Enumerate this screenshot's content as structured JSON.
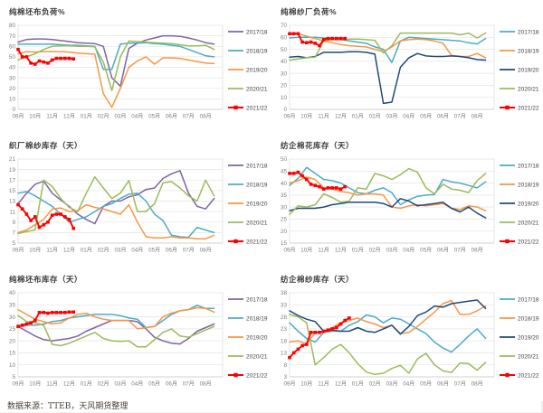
{
  "footer": {
    "source_note": "数据来源：TTEB，天风期货整理"
  },
  "colors": {
    "purple": "#8064A2",
    "cyan": "#4BACC6",
    "orange": "#F79646",
    "green": "#9BBB59",
    "dark_blue": "#1F497D",
    "red": "#FF0000",
    "grid": "#E4E4E4",
    "axis_text": "#7F7F7F",
    "title_text": "#3B3B3B"
  },
  "x_labels": [
    "09月",
    "10月",
    "11月",
    "12月",
    "01月",
    "02月",
    "03月",
    "04月",
    "05月",
    "06月",
    "07月",
    "08月"
  ],
  "chart_data": [
    {
      "type": "line",
      "title": "纯棉坯布负荷%",
      "ylim": [
        0,
        80
      ],
      "yticks": [
        0,
        10,
        20,
        30,
        40,
        50,
        60,
        70,
        80
      ],
      "grid": true,
      "legend_position": "right",
      "series": [
        {
          "name": "2017/18",
          "color": "#8064A2",
          "months_per_point": 0.5,
          "values": [
            64,
            66.5,
            67,
            67,
            66.5,
            65.5,
            64.5,
            63.5,
            63,
            62.5,
            60,
            30,
            22,
            58,
            63,
            66,
            68,
            70,
            70,
            69.5,
            68,
            66,
            63.5,
            62
          ]
        },
        {
          "name": "2018/19",
          "color": "#4BACC6",
          "months_per_point": 0.5,
          "values": [
            62,
            62,
            62,
            62,
            62,
            61.5,
            61,
            61,
            60.5,
            60,
            38,
            38,
            62,
            63,
            63,
            63.5,
            62.5,
            62,
            61,
            60,
            57,
            54,
            51,
            50
          ]
        },
        {
          "name": "2019/20",
          "color": "#F79646",
          "months_per_point": 0.5,
          "values": [
            53,
            55,
            54.5,
            55,
            55,
            55,
            54.5,
            53.5,
            53,
            52.5,
            15,
            2,
            20,
            40,
            46,
            50,
            43,
            49,
            49,
            48.5,
            47,
            45.5,
            44,
            43.5
          ]
        },
        {
          "name": "2020/21",
          "color": "#9BBB59",
          "months_per_point": 0.5,
          "values": [
            47,
            50,
            53,
            57,
            60,
            60.5,
            60.5,
            60,
            60,
            59.5,
            45,
            18,
            50,
            65,
            64.5,
            64,
            63.5,
            63,
            62.5,
            61.5,
            60.5,
            60.5,
            61,
            57
          ]
        },
        {
          "name": "2021/22",
          "color": "#FF0000",
          "marker": "square",
          "months_per_point": 0.25,
          "values": [
            57,
            50,
            50,
            44,
            43,
            46,
            45,
            44,
            47,
            48.5,
            48.5,
            48.5,
            48.5,
            48
          ]
        }
      ]
    },
    {
      "type": "line",
      "title": "纯棉纱厂负荷%",
      "ylim": [
        0,
        70
      ],
      "yticks": [
        0,
        10,
        20,
        30,
        40,
        50,
        60,
        70
      ],
      "grid": true,
      "legend_position": "right",
      "series": [
        {
          "name": "2017/18",
          "color": "#4BACC6",
          "months_per_point": 0.5,
          "values": [
            59.5,
            60,
            60,
            60,
            59.5,
            59,
            58,
            57,
            56,
            55,
            52,
            50,
            39,
            57,
            60,
            59.5,
            59,
            58.5,
            58,
            57.5,
            57,
            55.5,
            54.5,
            59
          ]
        },
        {
          "name": "2018/19",
          "color": "#F79646",
          "months_per_point": 0.5,
          "values": [
            62.5,
            63,
            61,
            59,
            57,
            55.5,
            54,
            53,
            52.5,
            52,
            50,
            48,
            52,
            57,
            58,
            58.5,
            58,
            57,
            55,
            45,
            44,
            44,
            46.5,
            43
          ]
        },
        {
          "name": "2019/20",
          "color": "#1F497D",
          "months_per_point": 0.5,
          "values": [
            43.5,
            44,
            43,
            44,
            47.5,
            47.5,
            47.5,
            48,
            48,
            47.5,
            46,
            5,
            6,
            35,
            43,
            46.5,
            44.5,
            44,
            44,
            44.5,
            44,
            43,
            41.5,
            41
          ]
        },
        {
          "name": "2020/21",
          "color": "#9BBB59",
          "months_per_point": 0.5,
          "values": [
            41,
            42,
            43,
            43.5,
            57,
            58,
            58,
            58.5,
            58.5,
            58,
            57.5,
            47,
            53,
            63.5,
            63.5,
            63.5,
            63.5,
            63.5,
            63.5,
            63.5,
            62,
            63.5,
            59.5,
            63.5
          ]
        },
        {
          "name": "2021/22",
          "color": "#FF0000",
          "marker": "square",
          "months_per_point": 0.25,
          "values": [
            63,
            63,
            63,
            56,
            55.5,
            56,
            55,
            53,
            58,
            59,
            59,
            59,
            59,
            59
          ]
        }
      ]
    },
    {
      "type": "line",
      "title": "织厂棉纱库存（天）",
      "ylim": [
        5,
        21
      ],
      "yticks": [
        5,
        7,
        9,
        11,
        13,
        15,
        17,
        19,
        21
      ],
      "grid": true,
      "legend_position": "right",
      "series": [
        {
          "name": "2017/18",
          "color": "#8064A2",
          "months_per_point": 0.5,
          "values": [
            12.5,
            14.5,
            16.2,
            16.8,
            14.5,
            13.2,
            12,
            10.5,
            9.5,
            8.7,
            12,
            13,
            13,
            13.8,
            14.2,
            15.2,
            15.5,
            17.3,
            18.2,
            18.8,
            14.5,
            12,
            11.5,
            13.5
          ]
        },
        {
          "name": "2018/19",
          "color": "#4BACC6",
          "months_per_point": 0.5,
          "values": [
            14.5,
            14.8,
            14,
            13,
            12,
            10.5,
            9,
            9.5,
            10,
            11,
            12,
            12.5,
            13.5,
            14.3,
            14.5,
            13,
            10.5,
            9.3,
            6.5,
            6.2,
            6.1,
            8,
            7.5,
            7
          ]
        },
        {
          "name": "2019/20",
          "color": "#F79646",
          "months_per_point": 0.5,
          "values": [
            7,
            7.5,
            8.5,
            9.5,
            11.5,
            11.7,
            11,
            11.2,
            12.3,
            11.8,
            11.5,
            11,
            10.5,
            12.3,
            9,
            6.2,
            6,
            6,
            6.2,
            6,
            6,
            5.8,
            5.8,
            6.5
          ]
        },
        {
          "name": "2020/21",
          "color": "#9BBB59",
          "months_per_point": 0.5,
          "values": [
            6.8,
            7.2,
            7.5,
            17,
            15.8,
            13.5,
            11.8,
            11,
            14.5,
            17.6,
            15.5,
            13.5,
            14.5,
            16.9,
            11,
            11,
            12.5,
            16.5,
            16.7,
            15.5,
            14,
            13,
            17,
            14
          ]
        },
        {
          "name": "2021/22",
          "color": "#FF0000",
          "marker": "square",
          "months_per_point": 0.25,
          "values": [
            12.3,
            11.5,
            10.5,
            9.3,
            10,
            8,
            8.5,
            9,
            10.3,
            10.5,
            10.5,
            10,
            9.5,
            7.8
          ]
        }
      ]
    },
    {
      "type": "line",
      "title": "纺企棉花库存（天）",
      "ylim": [
        15,
        50
      ],
      "yticks": [
        15,
        20,
        25,
        30,
        35,
        40,
        45,
        50
      ],
      "grid": true,
      "legend_position": "right",
      "series": [
        {
          "name": "2017/18",
          "color": "#4BACC6",
          "months_per_point": 0.5,
          "values": [
            39,
            42,
            46.5,
            44,
            41.5,
            41,
            40,
            38,
            36,
            35.5,
            37,
            38,
            36,
            31,
            33,
            34.5,
            35,
            35.2,
            41.5,
            40.5,
            40,
            39,
            38,
            40.5
          ]
        },
        {
          "name": "2018/19",
          "color": "#F79646",
          "months_per_point": 0.5,
          "values": [
            40,
            41,
            42.5,
            41.5,
            38,
            37.5,
            36.5,
            36,
            35,
            35.5,
            35.5,
            35,
            30,
            29.5,
            30.5,
            31,
            30.5,
            31,
            31.5,
            29.5,
            29,
            30.5,
            30,
            28.5
          ]
        },
        {
          "name": "2019/20",
          "color": "#1F497D",
          "months_per_point": 0.5,
          "values": [
            28.5,
            29.5,
            29.5,
            29.5,
            30,
            31,
            31.5,
            32,
            32,
            32,
            32,
            31.5,
            30,
            33.5,
            32.5,
            30.5,
            31,
            31.5,
            32,
            29.5,
            28,
            30,
            27.5,
            25.5
          ]
        },
        {
          "name": "2020/21",
          "color": "#9BBB59",
          "months_per_point": 0.5,
          "values": [
            27,
            30.5,
            30,
            31,
            35.5,
            34,
            32,
            32.5,
            38,
            37.5,
            44,
            43,
            41.5,
            43.5,
            46,
            44.5,
            38,
            35.5,
            39.5,
            37.5,
            37,
            36,
            41,
            44
          ]
        },
        {
          "name": "2021/22",
          "color": "#FF0000",
          "marker": "square",
          "months_per_point": 0.25,
          "values": [
            44,
            44,
            44.5,
            43,
            41.5,
            39.5,
            39,
            38.5,
            37.5,
            38,
            38,
            38,
            37.5,
            38.5
          ]
        }
      ]
    },
    {
      "type": "line",
      "title": "纯棉坯布库存（天）",
      "ylim": [
        5,
        40
      ],
      "yticks": [
        5,
        10,
        15,
        20,
        25,
        30,
        35,
        40
      ],
      "grid": true,
      "legend_position": "right",
      "series": [
        {
          "name": "2017/18",
          "color": "#8064A2",
          "months_per_point": 0.5,
          "values": [
            26,
            24,
            22,
            20.5,
            20,
            20.5,
            21,
            22,
            24,
            25.5,
            27,
            28.5,
            28.5,
            28.5,
            28,
            25,
            21.5,
            20,
            19,
            18.7,
            21,
            24,
            25.5,
            27
          ]
        },
        {
          "name": "2018/19",
          "color": "#4BACC6",
          "months_per_point": 0.5,
          "values": [
            26,
            26.5,
            26.5,
            27,
            28,
            28.5,
            29.5,
            30,
            30.5,
            31,
            31,
            31,
            30.5,
            29.5,
            29,
            25.5,
            26,
            28.5,
            31,
            32.5,
            33,
            34.8,
            33.5,
            33.5
          ]
        },
        {
          "name": "2019/20",
          "color": "#F79646",
          "months_per_point": 0.5,
          "values": [
            33,
            31,
            29,
            28,
            27,
            27.5,
            29.5,
            31,
            31.5,
            30,
            29,
            28.5,
            28.5,
            28.5,
            25,
            25.5,
            26,
            30,
            31.5,
            32.5,
            33,
            33.8,
            33.5,
            32
          ]
        },
        {
          "name": "2020/21",
          "color": "#9BBB59",
          "months_per_point": 0.5,
          "values": [
            30.5,
            28,
            27.5,
            26.5,
            18.5,
            18,
            19,
            20.5,
            22,
            23.5,
            21,
            20,
            19.8,
            20,
            17.5,
            17.5,
            20.5,
            23.5,
            25,
            22,
            21.5,
            23,
            24.5,
            26
          ]
        },
        {
          "name": "2021/22",
          "color": "#FF0000",
          "marker": "square",
          "months_per_point": 0.25,
          "values": [
            26,
            26.5,
            27,
            27.5,
            28.5,
            31.8,
            31.8,
            31.5,
            31.8,
            31.8,
            31.8,
            31.8,
            32,
            32
          ]
        }
      ]
    },
    {
      "type": "line",
      "title": "纺企棉纱库存（天）",
      "ylim": [
        3,
        38
      ],
      "yticks": [
        3,
        8,
        13,
        18,
        23,
        28,
        33,
        38
      ],
      "grid": true,
      "legend_position": "right",
      "series": [
        {
          "name": "2017/18",
          "color": "#4BACC6",
          "months_per_point": 0.5,
          "values": [
            25.5,
            22,
            19,
            17.5,
            21.5,
            22,
            22,
            24.5,
            26,
            28.8,
            28,
            25.5,
            27.5,
            27,
            25,
            23,
            21,
            17.5,
            15,
            13.3,
            16.5,
            20,
            23,
            19
          ]
        },
        {
          "name": "2018/19",
          "color": "#F79646",
          "months_per_point": 0.5,
          "values": [
            17.5,
            18,
            16.5,
            21.5,
            21.5,
            23.5,
            25.5,
            26.5,
            27.5,
            26,
            25,
            23.5,
            24.5,
            21,
            21.5,
            24,
            27,
            30,
            33.5,
            34.8,
            29,
            29,
            30.5,
            32.5
          ]
        },
        {
          "name": "2019/20",
          "color": "#1F497D",
          "months_per_point": 0.5,
          "values": [
            30.5,
            28.5,
            27,
            26,
            22,
            22.5,
            22,
            22,
            23.5,
            22,
            21.5,
            23,
            24.5,
            20.8,
            24,
            28.5,
            30,
            32.5,
            32,
            33.5,
            34,
            34.5,
            35,
            31.5
          ]
        },
        {
          "name": "2020/21",
          "color": "#9BBB59",
          "months_per_point": 0.5,
          "values": [
            29,
            28,
            25.5,
            8,
            11,
            14.5,
            16.5,
            13,
            8.5,
            5,
            4,
            4.5,
            6.5,
            7.8,
            4.5,
            10.5,
            12.8,
            8,
            5.5,
            4.8,
            8.8,
            8.5,
            5.8,
            9
          ]
        },
        {
          "name": "2021/22",
          "color": "#FF0000",
          "marker": "square",
          "months_per_point": 0.25,
          "values": [
            11,
            13,
            14.5,
            16,
            16.5,
            21.5,
            21.5,
            21.5,
            22,
            22.5,
            23,
            23.5,
            25,
            26.5,
            27.5
          ]
        }
      ]
    }
  ]
}
